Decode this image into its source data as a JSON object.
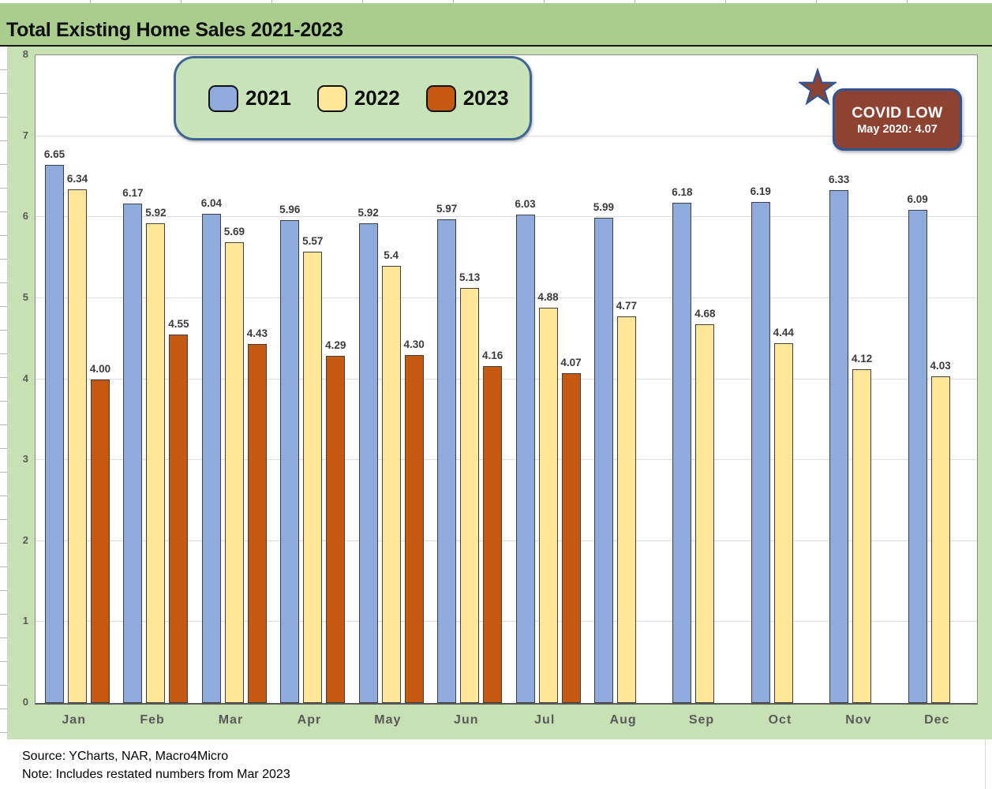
{
  "title": "Total Existing Home Sales 2021-2023",
  "colors": {
    "title_band_green": "#A8CD8C",
    "sheet_green": "#C7E1B5",
    "plot_background": "#FFFFFF",
    "gridline": "#DCDCDC",
    "axis_text": "#595959",
    "legend_border_blue": "#3E6596",
    "annotation_fill": "#8E4232",
    "annotation_border_blue": "#2F5597"
  },
  "chart_data": {
    "type": "bar",
    "title": "Total Existing Home Sales 2021-2023",
    "categories": [
      "Jan",
      "Feb",
      "Mar",
      "Apr",
      "May",
      "Jun",
      "Jul",
      "Aug",
      "Sep",
      "Oct",
      "Nov",
      "Dec"
    ],
    "series": [
      {
        "name": "2021",
        "color": "#8FAADC",
        "border": "#3F3F3F",
        "values": [
          6.65,
          6.17,
          6.04,
          5.96,
          5.92,
          5.97,
          6.03,
          5.99,
          6.18,
          6.19,
          6.33,
          6.09
        ],
        "display": [
          "6.65",
          "6.17",
          "6.04",
          "5.96",
          "5.92",
          "5.97",
          "6.03",
          "5.99",
          "6.18",
          "6.19",
          "6.33",
          "6.09"
        ]
      },
      {
        "name": "2022",
        "color": "#FFE699",
        "border": "#3F3F3F",
        "values": [
          6.34,
          5.92,
          5.69,
          5.57,
          5.4,
          5.13,
          4.88,
          4.77,
          4.68,
          4.44,
          4.12,
          4.03
        ],
        "display": [
          "6.34",
          "5.92",
          "5.69",
          "5.57",
          "5.4",
          "5.13",
          "4.88",
          "4.77",
          "4.68",
          "4.44",
          "4.12",
          "4.03"
        ]
      },
      {
        "name": "2023",
        "color": "#C65911",
        "border": "#3F3F3F",
        "values": [
          4.0,
          4.55,
          4.43,
          4.29,
          4.3,
          4.16,
          4.07,
          null,
          null,
          null,
          null,
          null
        ],
        "display": [
          "4.00",
          "4.55",
          "4.43",
          "4.29",
          "4.30",
          "4.16",
          "4.07",
          "",
          "",
          "",
          "",
          ""
        ]
      }
    ],
    "xlabel": "",
    "ylabel": "",
    "ylim": [
      0,
      8
    ],
    "yticks": [
      0,
      1,
      2,
      3,
      4,
      5,
      6,
      7,
      8
    ],
    "grid": true,
    "legend_position": "top-left",
    "annotation": {
      "title": "COVID LOW",
      "subtitle": "May 2020: 4.07",
      "marker": "star-icon"
    }
  },
  "footer": {
    "source": "Source: YCharts, NAR, Macro4Micro",
    "note": "Note: Includes restated numbers from Mar 2023"
  }
}
